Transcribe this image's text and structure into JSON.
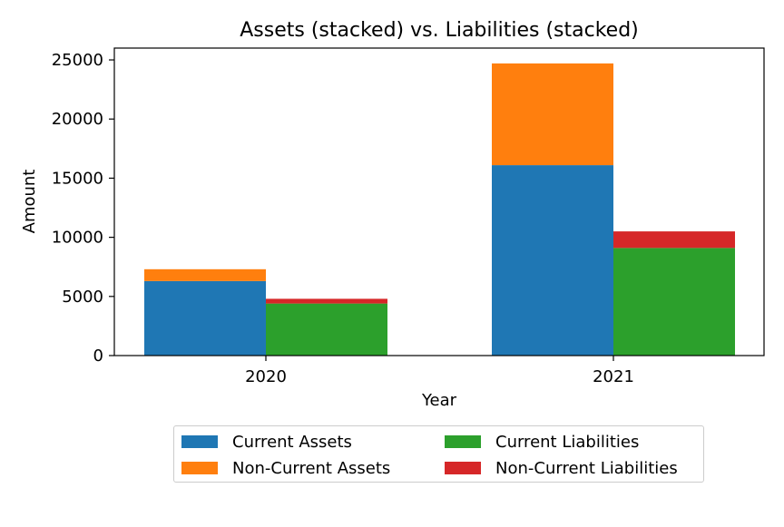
{
  "chart_data": {
    "type": "bar",
    "stacked": true,
    "title": "Assets (stacked) vs. Liabilities (stacked)",
    "xlabel": "Year",
    "ylabel": "Amount",
    "categories": [
      "2020",
      "2021"
    ],
    "ylim": [
      0,
      26000
    ],
    "yticks": [
      0,
      5000,
      10000,
      15000,
      20000,
      25000
    ],
    "ytick_labels": [
      "0",
      "5000",
      "10000",
      "15000",
      "20000",
      "25000"
    ],
    "grid": false,
    "legend_position": "bottom-center",
    "stacks": [
      {
        "stack": "Assets",
        "series": [
          {
            "name": "Current Assets",
            "color": "#1f77b4",
            "values": [
              6300,
              16100
            ]
          },
          {
            "name": "Non-Current Assets",
            "color": "#ff7f0e",
            "values": [
              1000,
              8600
            ]
          }
        ]
      },
      {
        "stack": "Liabilities",
        "series": [
          {
            "name": "Current Liabilities",
            "color": "#2ca02c",
            "values": [
              4400,
              9100
            ]
          },
          {
            "name": "Non-Current Liabilities",
            "color": "#d62728",
            "values": [
              400,
              1400
            ]
          }
        ]
      }
    ]
  }
}
